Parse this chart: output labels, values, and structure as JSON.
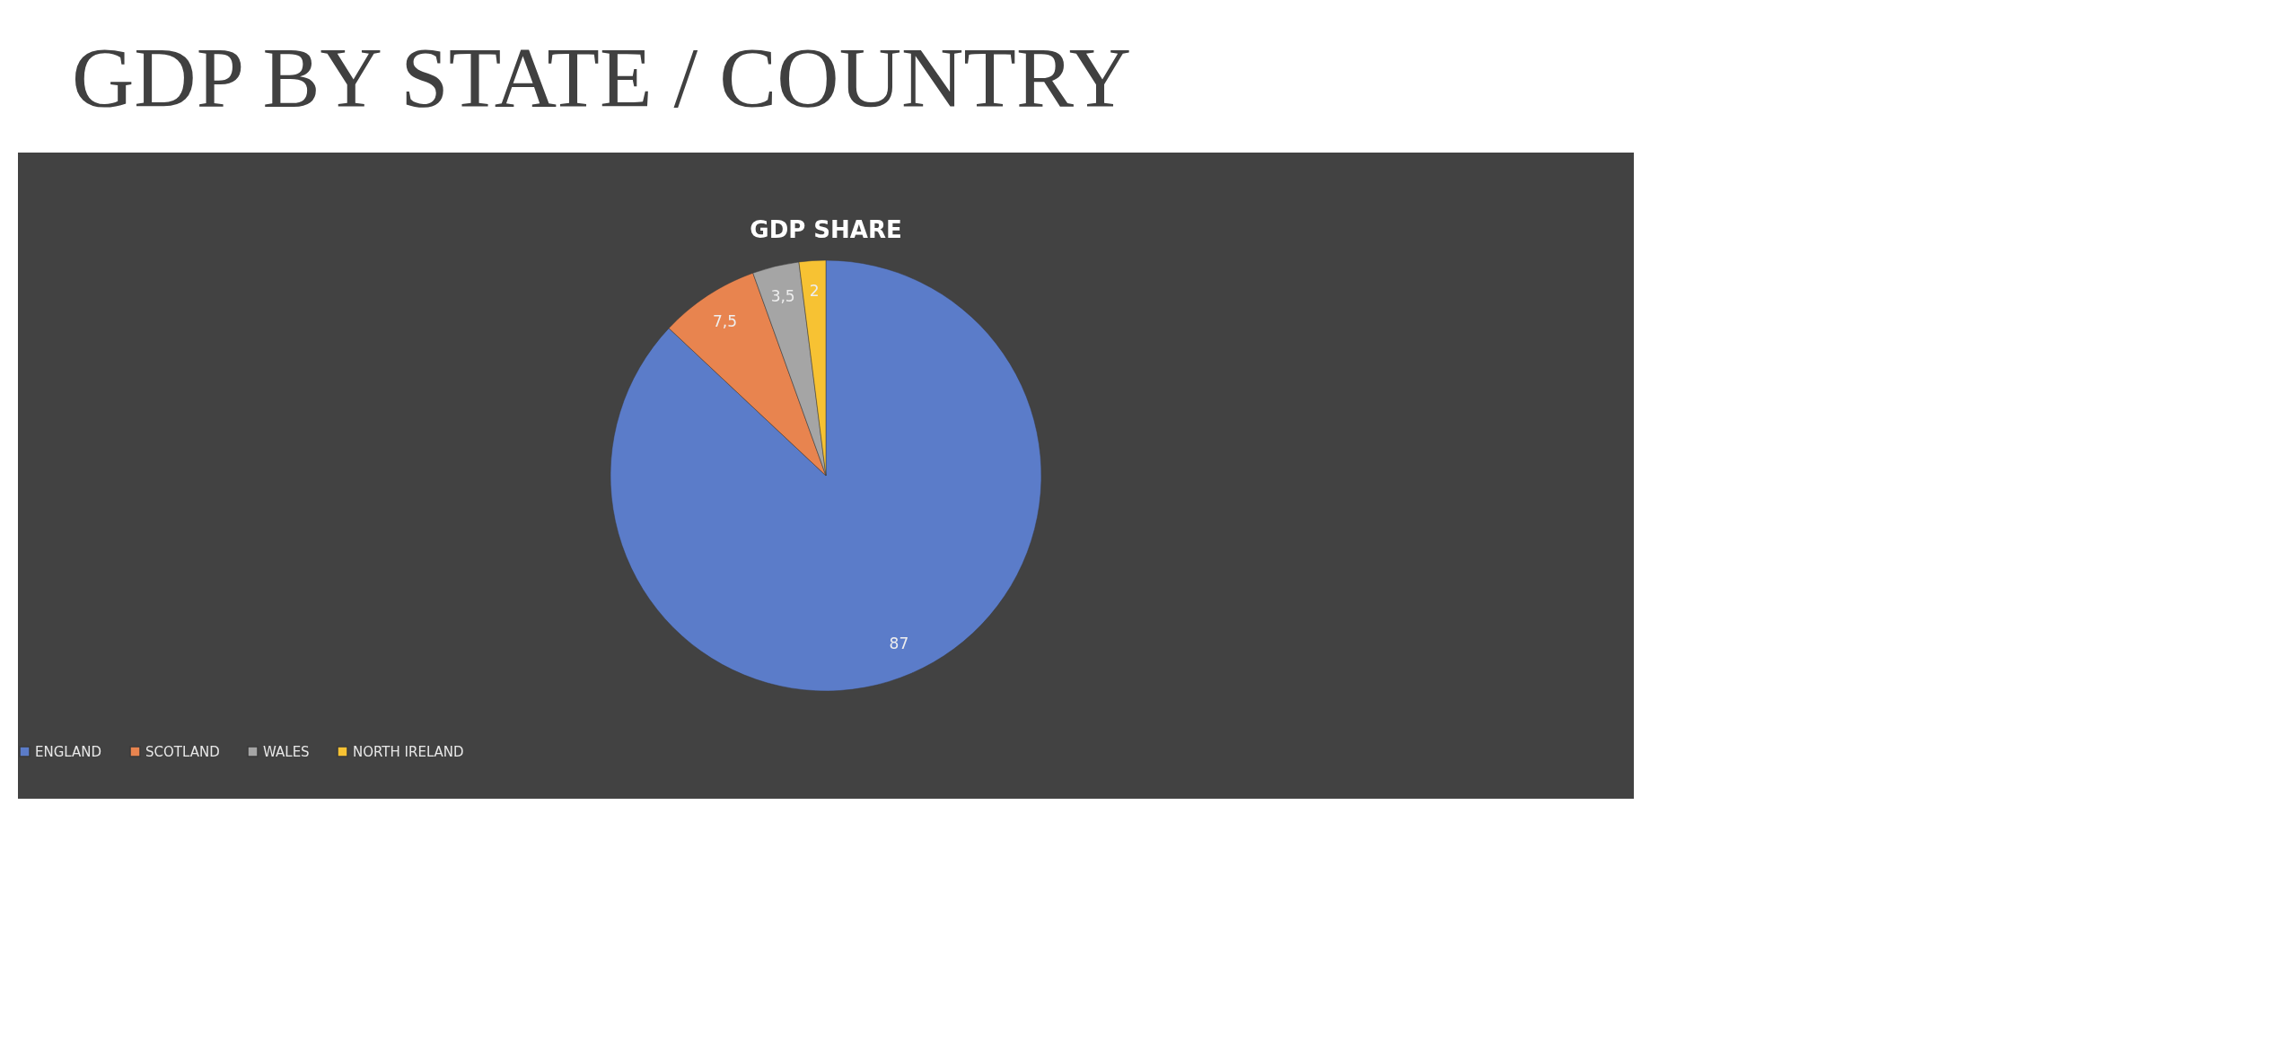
{
  "chart_data": {
    "type": "pie",
    "title": "GDP BY STATE / COUNTRY",
    "subtitle": "GDP SHARE",
    "categories": [
      "ENGLAND",
      "SCOTLAND",
      "WALES",
      "NORTH IRELAND"
    ],
    "values": [
      87,
      7.5,
      3.5,
      2
    ],
    "value_labels": [
      "87",
      "7,5",
      "3,5",
      "2"
    ],
    "colors": [
      "#5b7cc9",
      "#e8844f",
      "#a5a5a5",
      "#f7c233"
    ],
    "legend": "bottom"
  }
}
